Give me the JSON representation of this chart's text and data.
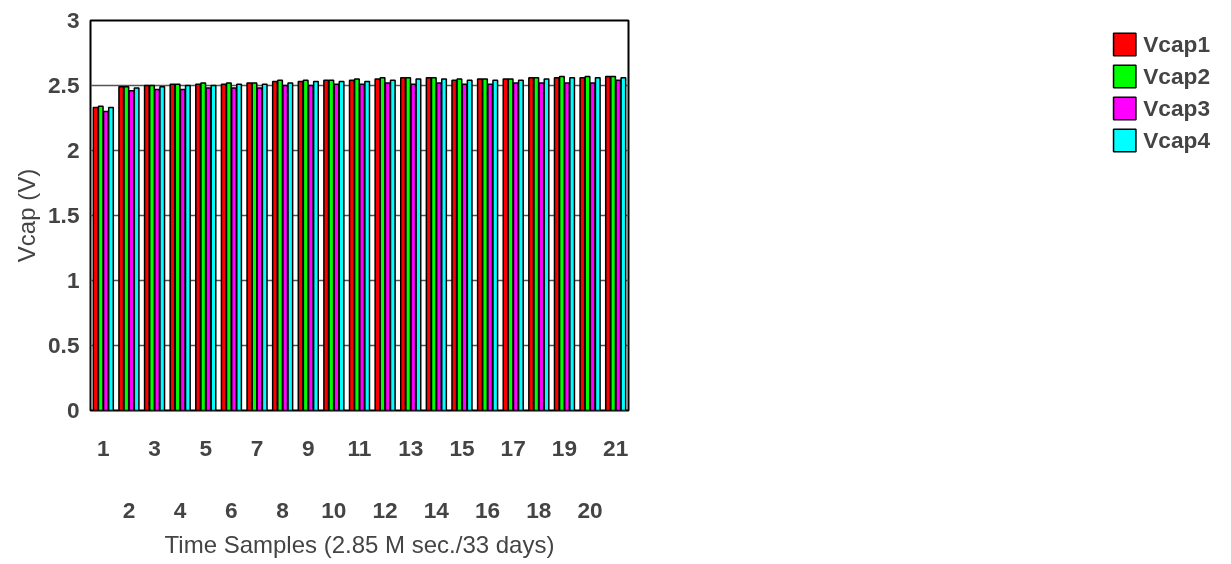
{
  "chart_data": {
    "type": "bar",
    "xlabel": "Time Samples (2.85 M sec./33 days)",
    "ylabel": "Vcap (V)",
    "categories": [
      "1",
      "2",
      "3",
      "4",
      "5",
      "6",
      "7",
      "8",
      "9",
      "10",
      "11",
      "12",
      "13",
      "14",
      "15",
      "16",
      "17",
      "18",
      "19",
      "20",
      "21"
    ],
    "series": [
      {
        "name": "Vcap1",
        "color": "#ff0000",
        "values": [
          2.33,
          2.49,
          2.5,
          2.51,
          2.51,
          2.51,
          2.52,
          2.53,
          2.53,
          2.54,
          2.54,
          2.55,
          2.56,
          2.56,
          2.54,
          2.55,
          2.55,
          2.56,
          2.56,
          2.56,
          2.57
        ]
      },
      {
        "name": "Vcap2",
        "color": "#00ff00",
        "values": [
          2.34,
          2.49,
          2.5,
          2.51,
          2.52,
          2.52,
          2.52,
          2.54,
          2.54,
          2.54,
          2.55,
          2.56,
          2.56,
          2.56,
          2.55,
          2.55,
          2.55,
          2.56,
          2.57,
          2.57,
          2.57
        ]
      },
      {
        "name": "Vcap3",
        "color": "#ff00ff",
        "values": [
          2.3,
          2.46,
          2.47,
          2.47,
          2.48,
          2.48,
          2.48,
          2.5,
          2.5,
          2.51,
          2.51,
          2.52,
          2.51,
          2.52,
          2.51,
          2.51,
          2.52,
          2.52,
          2.52,
          2.52,
          2.54
        ]
      },
      {
        "name": "Vcap4",
        "color": "#00ffff",
        "values": [
          2.33,
          2.48,
          2.49,
          2.5,
          2.5,
          2.51,
          2.51,
          2.52,
          2.53,
          2.53,
          2.53,
          2.54,
          2.55,
          2.55,
          2.54,
          2.54,
          2.54,
          2.55,
          2.56,
          2.56,
          2.56
        ]
      }
    ],
    "ylim": [
      0,
      3
    ],
    "yticks": [
      0,
      0.5,
      1,
      1.5,
      2,
      2.5,
      3
    ],
    "grid": "y",
    "legend": "right"
  }
}
